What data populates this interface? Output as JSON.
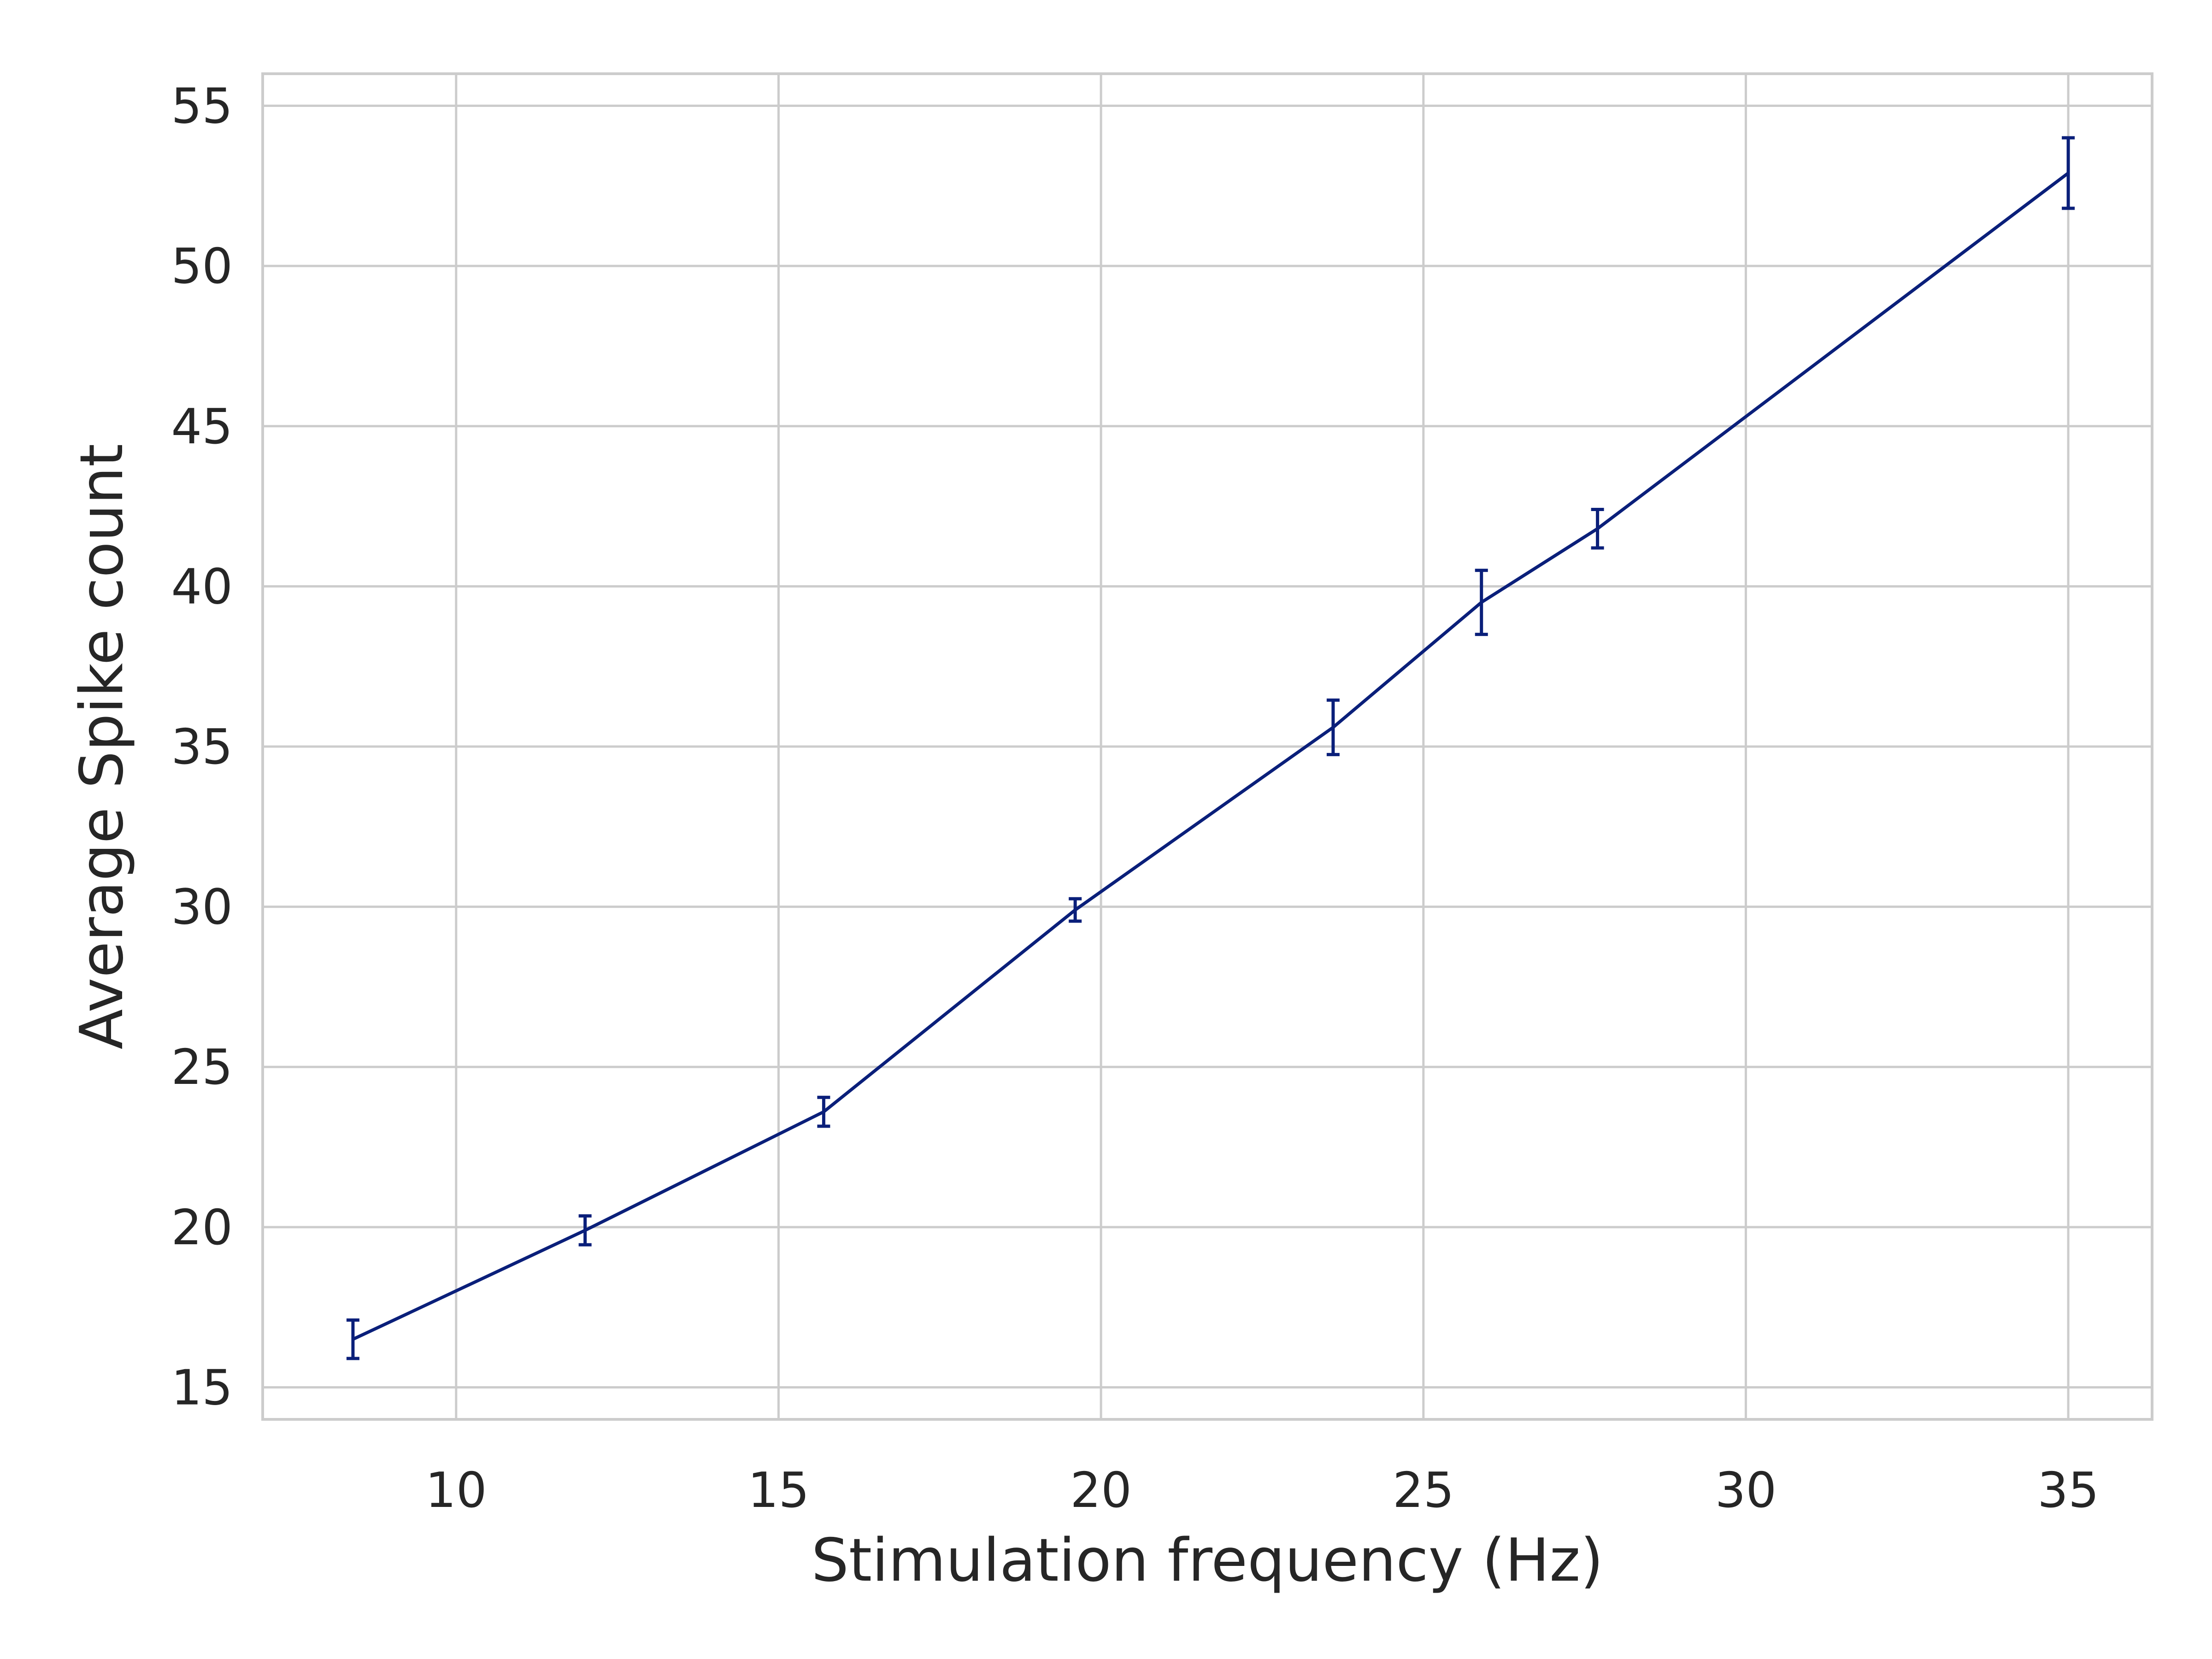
{
  "chart_data": {
    "type": "line",
    "xlabel": "Stimulation frequency (Hz)",
    "ylabel": "Average Spike count",
    "xlim": [
      7.0,
      36.3
    ],
    "ylim": [
      14.0,
      56.0
    ],
    "xticks": [
      10,
      15,
      20,
      25,
      30,
      35
    ],
    "yticks": [
      15,
      20,
      25,
      30,
      35,
      40,
      45,
      50,
      55
    ],
    "xtick_labels": [
      "10",
      "15",
      "20",
      "25",
      "30",
      "35"
    ],
    "ytick_labels": [
      "15",
      "20",
      "25",
      "30",
      "35",
      "40",
      "45",
      "50",
      "55"
    ],
    "grid": true,
    "legend": "none",
    "series": [
      {
        "color": "#0a1f7a",
        "x": [
          8.4,
          12.0,
          15.7,
          19.6,
          23.6,
          25.9,
          27.7,
          35.0
        ],
        "y": [
          16.5,
          19.9,
          23.6,
          29.9,
          35.6,
          39.5,
          41.8,
          52.9
        ],
        "err": [
          0.6,
          0.45,
          0.45,
          0.35,
          0.85,
          1.0,
          0.6,
          1.1
        ]
      }
    ]
  }
}
